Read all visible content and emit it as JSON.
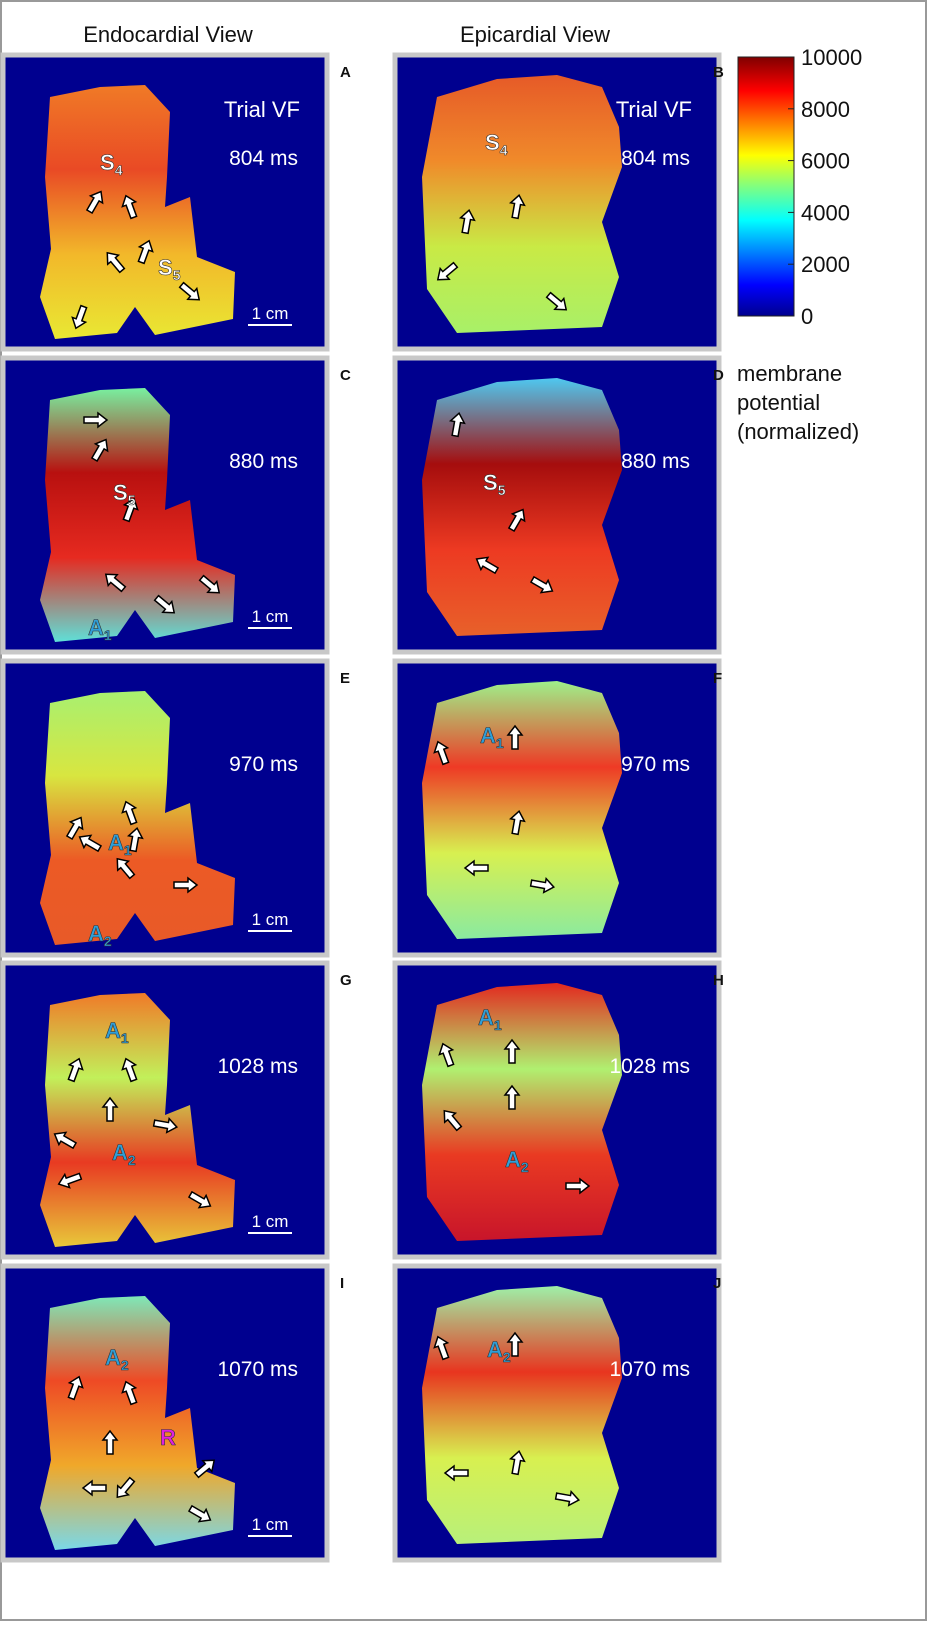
{
  "headers": [
    "Endocardial View",
    "Epicardial View"
  ],
  "panels": [
    {
      "letter": "A",
      "title": "Trial VF",
      "time": "804 ms",
      "scale": "1 cm",
      "labels": [
        {
          "text": "S",
          "sub": "4"
        },
        {
          "text": "S",
          "sub": "5"
        }
      ]
    },
    {
      "letter": "B",
      "title": "Trial VF",
      "time": "804 ms",
      "labels": [
        {
          "text": "S",
          "sub": "4"
        }
      ]
    },
    {
      "letter": "C",
      "time": "880 ms",
      "scale": "1 cm",
      "labels": [
        {
          "text": "S",
          "sub": "5"
        },
        {
          "text": "A",
          "sub": "1"
        }
      ]
    },
    {
      "letter": "D",
      "time": "880 ms",
      "labels": [
        {
          "text": "S",
          "sub": "5"
        }
      ]
    },
    {
      "letter": "E",
      "time": "970 ms",
      "scale": "1 cm",
      "labels": [
        {
          "text": "A",
          "sub": "1"
        },
        {
          "text": "A",
          "sub": "2"
        }
      ]
    },
    {
      "letter": "F",
      "time": "970 ms",
      "labels": [
        {
          "text": "A",
          "sub": "1"
        }
      ]
    },
    {
      "letter": "G",
      "time": "1028 ms",
      "scale": "1 cm",
      "labels": [
        {
          "text": "A",
          "sub": "1"
        },
        {
          "text": "A",
          "sub": "2"
        }
      ]
    },
    {
      "letter": "H",
      "time": "1028 ms",
      "labels": [
        {
          "text": "A",
          "sub": "1"
        },
        {
          "text": "A",
          "sub": "2"
        }
      ]
    },
    {
      "letter": "I",
      "time": "1070 ms",
      "scale": "1 cm",
      "labels": [
        {
          "text": "A",
          "sub": "2"
        },
        {
          "text": "R"
        }
      ]
    },
    {
      "letter": "J",
      "time": "1070 ms",
      "labels": [
        {
          "text": "A",
          "sub": "2"
        }
      ]
    }
  ],
  "colorbar": {
    "range": [
      0,
      10000
    ],
    "ticks": [
      0,
      2000,
      4000,
      6000,
      8000,
      10000
    ],
    "caption": [
      "membrane",
      "potential",
      "(normalized)"
    ]
  }
}
